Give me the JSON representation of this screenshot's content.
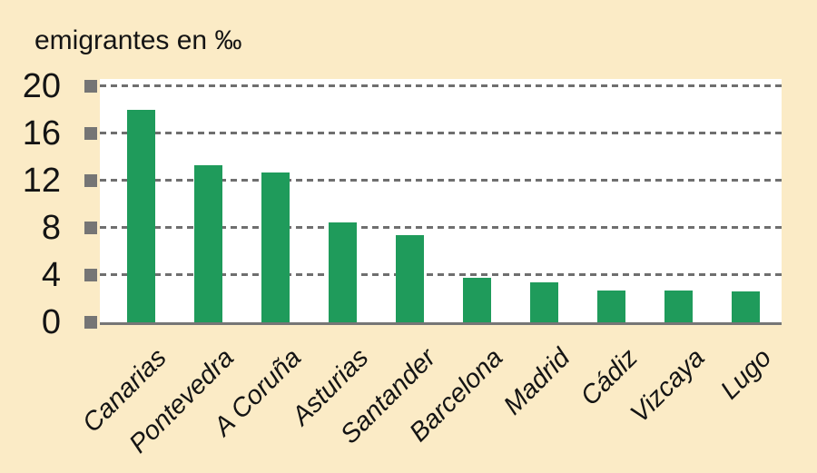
{
  "colors": {
    "background": "#FBEBC6",
    "plot_background": "#FFFFFF",
    "bar": "#1F9B5B",
    "grid": "#6F6F6F",
    "axis": "#767676",
    "tick_marker": "#757575",
    "text": "#141414"
  },
  "chart_data": {
    "type": "bar",
    "title": "emigrantes en ‰",
    "categories": [
      "Canarias",
      "Pontevedra",
      "A Coruña",
      "Asturias",
      "Santander",
      "Barcelona",
      "Madrid",
      "Cádiz",
      "Vizcaya",
      "Lugo"
    ],
    "values": [
      18,
      13.3,
      12.7,
      8.5,
      7.4,
      3.8,
      3.4,
      2.7,
      2.7,
      2.6
    ],
    "ylabel": "emigrantes en ‰",
    "xlabel": "",
    "yticks": [
      0,
      4,
      8,
      12,
      16,
      20
    ],
    "ytick_labels": [
      "0",
      "4",
      "8",
      "12",
      "16",
      "20"
    ],
    "ylim": [
      0,
      20
    ],
    "grid": "horizontal-dashed",
    "legend": "none",
    "tick_marker_shape": "square"
  }
}
